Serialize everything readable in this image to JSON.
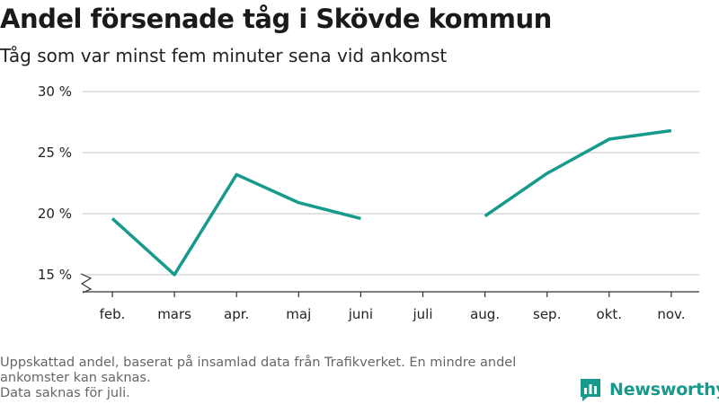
{
  "header": {
    "title": "Andel försenade tåg i Skövde kommun",
    "subtitle": "Tåg som var minst fem minuter sena vid ankomst"
  },
  "footer": {
    "note_line1": "Uppskattad andel, baserat på insamlad data från Trafikverket. En mindre andel ankomster kan saknas.",
    "note_line2": "Data saknas för juli.",
    "brand": "Newsworthy"
  },
  "colors": {
    "line": "#159a8c",
    "grid": "#d9d9d9",
    "axis": "#333333",
    "brand": "#159a8c"
  },
  "chart_data": {
    "type": "line",
    "title": "Andel försenade tåg i Skövde kommun",
    "subtitle": "Tåg som var minst fem minuter sena vid ankomst",
    "categories": [
      "feb.",
      "mars",
      "apr.",
      "maj",
      "juni",
      "juli",
      "aug.",
      "sep.",
      "okt.",
      "nov."
    ],
    "series": [
      {
        "values": [
          19.6,
          15.0,
          23.2,
          20.9,
          19.6,
          null,
          19.8,
          23.3,
          26.1,
          26.8
        ]
      }
    ],
    "y_ticks": [
      15,
      20,
      25,
      30
    ],
    "y_tick_labels": [
      "15 %",
      "20 %",
      "25 %",
      "30 %"
    ],
    "ylim": [
      13.6,
      30
    ],
    "y_axis_break": true,
    "grid": true,
    "xlabel": "",
    "ylabel": ""
  }
}
